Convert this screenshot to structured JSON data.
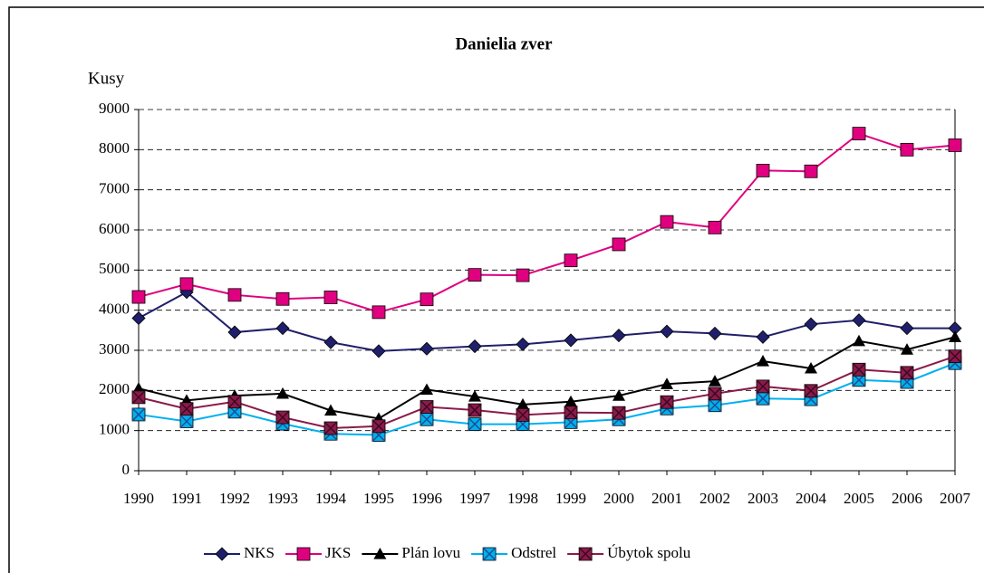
{
  "chart_data": {
    "type": "line",
    "title": "Danielia zver",
    "y_label": "Kusy",
    "categories": [
      "1990",
      "1991",
      "1992",
      "1993",
      "1994",
      "1995",
      "1996",
      "1997",
      "1998",
      "1999",
      "2000",
      "2001",
      "2002",
      "2003",
      "2004",
      "2005",
      "2006",
      "2007"
    ],
    "ylim": [
      0,
      9000
    ],
    "yticks": [
      0,
      1000,
      2000,
      3000,
      4000,
      5000,
      6000,
      7000,
      8000,
      9000
    ],
    "grid": true,
    "legend": "bottom",
    "series": [
      {
        "name": "NKS",
        "color": "#1f1f6b",
        "marker": "diamond",
        "values": [
          3800,
          4450,
          3450,
          3550,
          3200,
          2980,
          3040,
          3100,
          3150,
          3250,
          3370,
          3470,
          3420,
          3330,
          3650,
          3750,
          3550,
          3550
        ]
      },
      {
        "name": "JKS",
        "color": "#e0007f",
        "marker": "square",
        "values": [
          4330,
          4650,
          4380,
          4280,
          4320,
          3950,
          4270,
          4880,
          4870,
          5240,
          5640,
          6200,
          6060,
          7480,
          7460,
          8400,
          8000,
          8110
        ]
      },
      {
        "name": "Plán lovu",
        "color": "#000000",
        "marker": "triangle",
        "values": [
          2050,
          1750,
          1870,
          1920,
          1500,
          1300,
          2020,
          1850,
          1650,
          1720,
          1870,
          2160,
          2230,
          2730,
          2550,
          3230,
          3020,
          3330
        ]
      },
      {
        "name": "Odstrel",
        "color": "#00b0f0",
        "marker": "xsquare",
        "values": [
          1400,
          1230,
          1470,
          1170,
          920,
          890,
          1280,
          1160,
          1160,
          1210,
          1280,
          1550,
          1630,
          1800,
          1780,
          2260,
          2210,
          2680
        ]
      },
      {
        "name": "Úbytok spolu",
        "color": "#8b1a4a",
        "marker": "xsquare",
        "values": [
          1830,
          1540,
          1720,
          1330,
          1060,
          1110,
          1590,
          1510,
          1390,
          1450,
          1440,
          1710,
          1920,
          2100,
          1990,
          2520,
          2440,
          2850
        ]
      }
    ]
  }
}
